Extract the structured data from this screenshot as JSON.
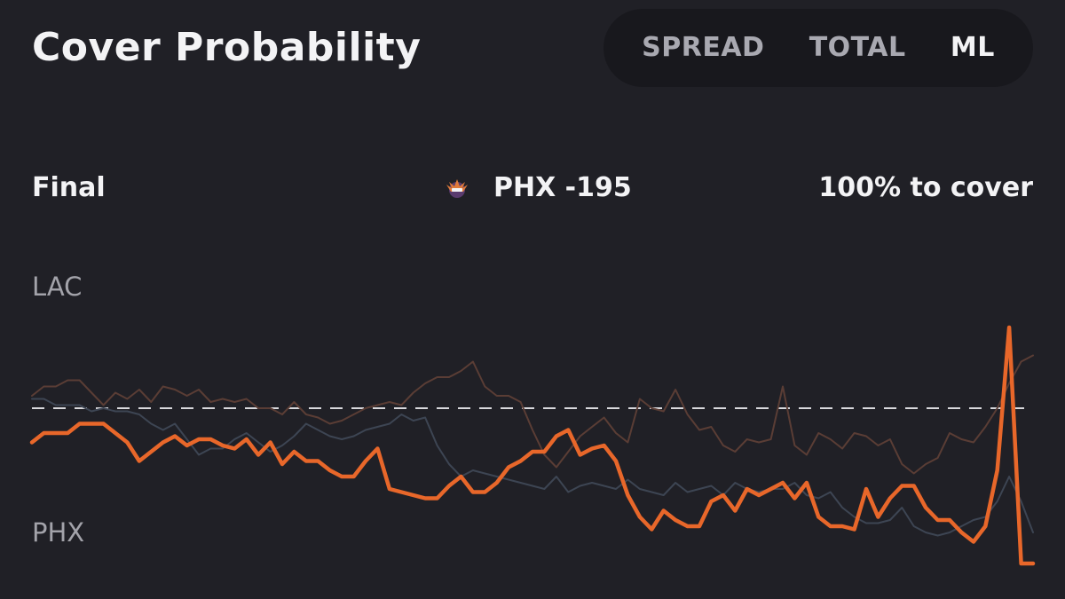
{
  "header": {
    "title": "Cover Probability",
    "tabs": [
      {
        "label": "SPREAD",
        "active": false
      },
      {
        "label": "TOTAL",
        "active": false
      },
      {
        "label": "ML",
        "active": true
      }
    ]
  },
  "status": {
    "period": "Final",
    "line": "PHX -195",
    "cover": "100% to cover",
    "team_logo_icon": "suns-logo-icon"
  },
  "colors": {
    "background": "#202026",
    "accent_orange": "#e8672a",
    "brown_line": "#5a3d35",
    "slate_line": "#3d4553",
    "dashed_line": "#d8d8dc"
  },
  "chart_data": {
    "type": "line",
    "top_label": "LAC",
    "bottom_label": "PHX",
    "ylim": [
      0,
      100
    ],
    "baseline": 50,
    "series": [
      {
        "values": [
          39,
          42,
          42,
          42,
          45,
          45,
          45,
          42,
          39,
          33,
          36,
          39,
          41,
          38,
          40,
          40,
          38,
          37,
          40,
          35,
          39,
          32,
          36,
          33,
          33,
          30,
          28,
          28,
          33,
          37,
          24,
          23,
          22,
          21,
          21,
          25,
          28,
          23,
          23,
          26,
          31,
          33,
          36,
          36,
          41,
          43,
          35,
          37,
          38,
          33,
          22,
          15,
          11,
          17,
          14,
          12,
          12,
          20,
          22,
          17,
          24,
          22,
          24,
          26,
          21,
          26,
          15,
          12,
          12,
          11,
          24,
          15,
          21,
          25,
          25,
          18,
          14,
          14,
          10,
          7,
          12,
          30,
          76,
          0,
          0
        ]
      },
      {
        "values": [
          54,
          57,
          57,
          59,
          59,
          55,
          51,
          55,
          53,
          56,
          52,
          57,
          56,
          54,
          56,
          52,
          53,
          52,
          53,
          50,
          50,
          48,
          52,
          48,
          47,
          45,
          46,
          48,
          50,
          51,
          52,
          51,
          55,
          58,
          60,
          60,
          62,
          65,
          57,
          54,
          54,
          52,
          43,
          35,
          31,
          36,
          41,
          44,
          47,
          42,
          39,
          53,
          50,
          49,
          56,
          48,
          43,
          44,
          38,
          36,
          40,
          39,
          40,
          57,
          38,
          35,
          42,
          40,
          37,
          42,
          41,
          38,
          40,
          32,
          29,
          32,
          34,
          42,
          40,
          39,
          44,
          50,
          58,
          65,
          67
        ]
      },
      {
        "values": [
          53,
          53,
          51,
          51,
          51,
          49,
          50,
          49,
          49,
          48,
          45,
          43,
          45,
          40,
          35,
          37,
          37,
          40,
          42,
          39,
          36,
          38,
          41,
          45,
          43,
          41,
          40,
          41,
          43,
          44,
          45,
          48,
          46,
          47,
          38,
          32,
          28,
          30,
          29,
          28,
          27,
          26,
          25,
          24,
          28,
          23,
          25,
          26,
          25,
          24,
          27,
          24,
          23,
          22,
          26,
          23,
          24,
          25,
          22,
          26,
          24,
          23,
          24,
          24,
          26,
          22,
          21,
          23,
          18,
          15,
          13,
          13,
          14,
          18,
          12,
          10,
          9,
          10,
          12,
          14,
          15,
          20,
          28,
          20,
          10
        ]
      }
    ]
  }
}
